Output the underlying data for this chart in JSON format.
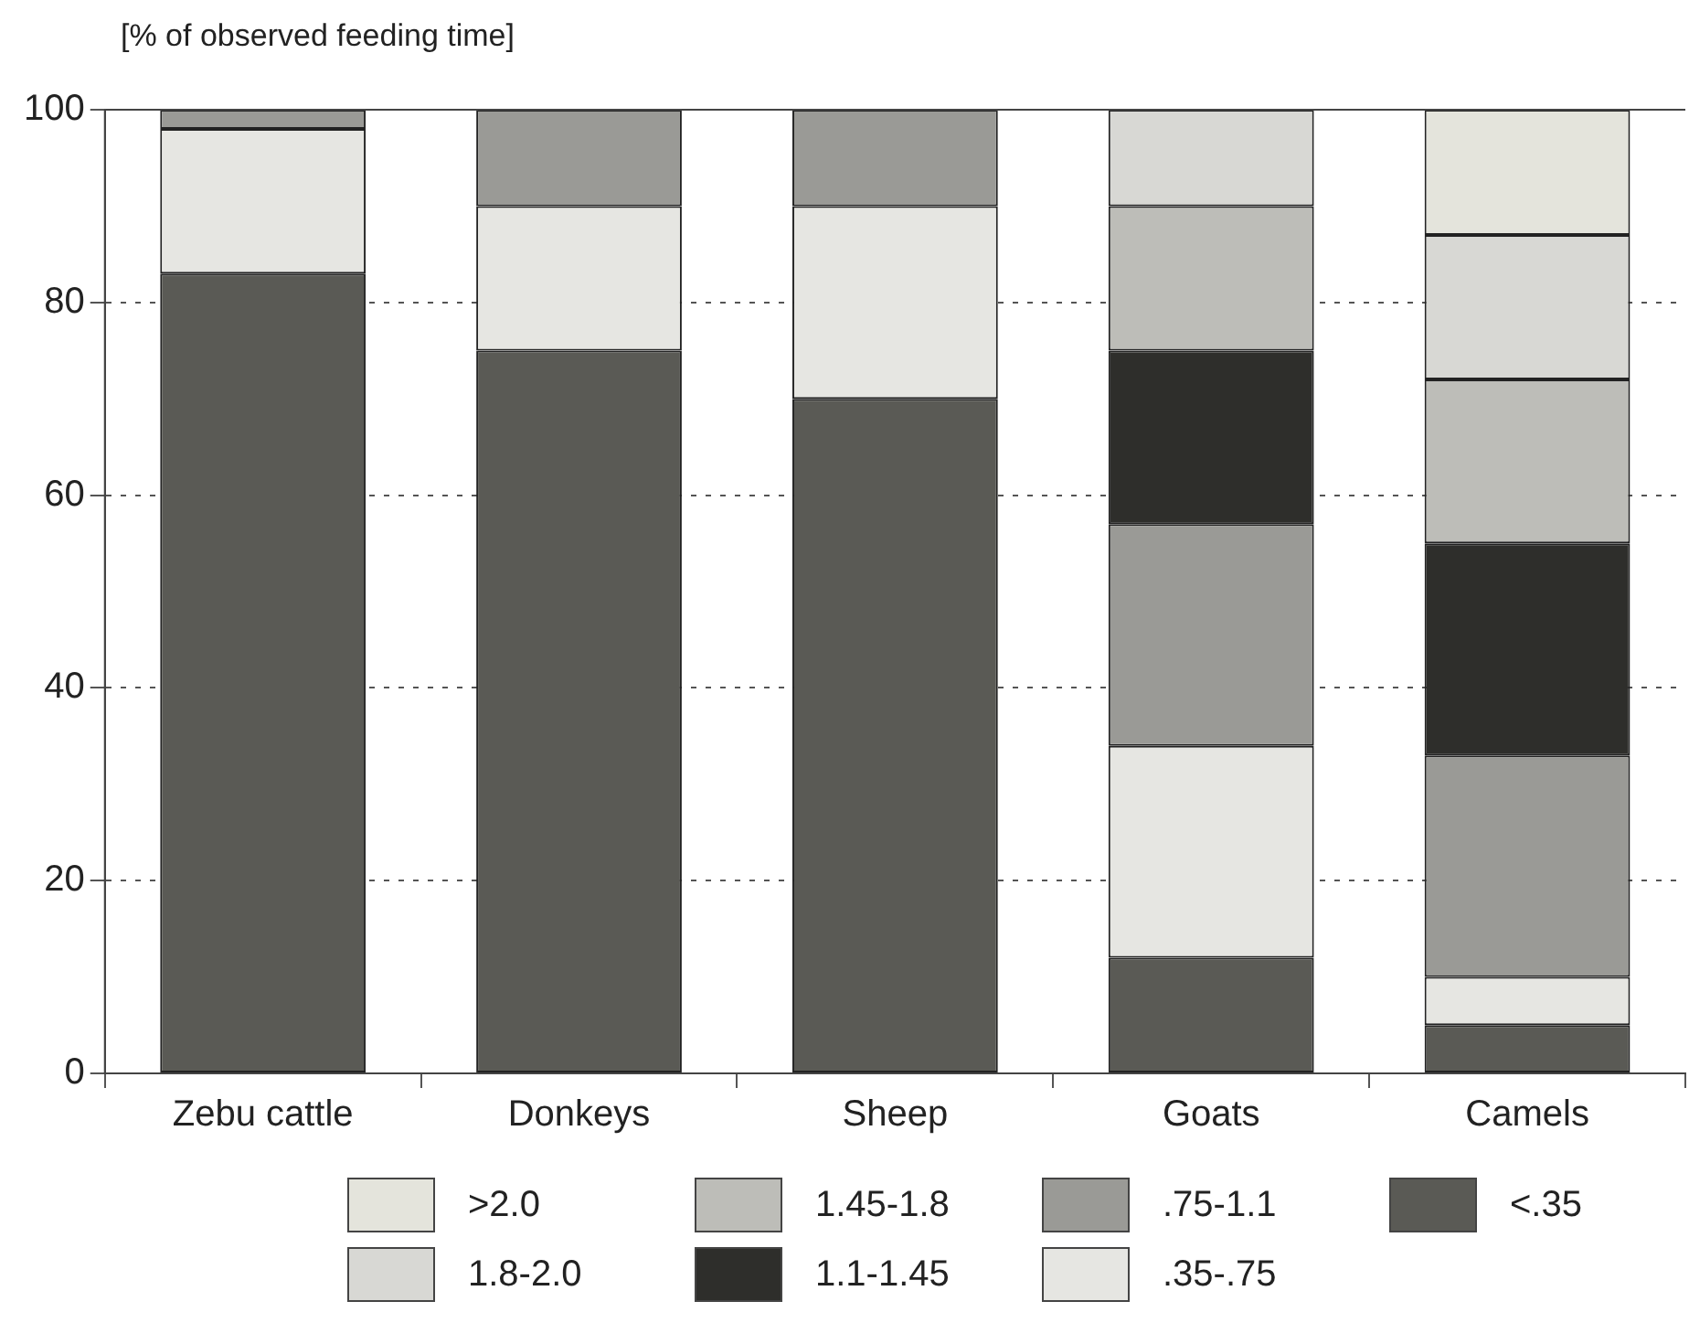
{
  "chart_data": {
    "type": "bar",
    "stacked": true,
    "ylabel": "[% of observed feeding time]",
    "categories": [
      "Zebu cattle",
      "Donkeys",
      "Sheep",
      "Goats",
      "Camels"
    ],
    "series": [
      {
        "name": "<.35",
        "color": "#5a5a55",
        "values": [
          83,
          75,
          70,
          12,
          5
        ]
      },
      {
        "name": ".35-.75",
        "color": "#e6e6e2",
        "values": [
          15,
          15,
          20,
          22,
          5
        ]
      },
      {
        "name": ".75-1.1",
        "color": "#9a9a96",
        "values": [
          2,
          10,
          10,
          23,
          23
        ]
      },
      {
        "name": "1.1-1.45",
        "color": "#2e2e2b",
        "values": [
          null,
          null,
          null,
          18,
          22
        ]
      },
      {
        "name": "1.45-1.8",
        "color": "#bdbdb8",
        "values": [
          null,
          null,
          null,
          15,
          17
        ]
      },
      {
        "name": "1.8-2.0",
        "color": "#d8d8d4",
        "values": [
          null,
          null,
          null,
          10,
          15
        ]
      },
      {
        "name": ">2.0",
        "color": "#e4e4dc",
        "values": [
          null,
          null,
          null,
          null,
          13
        ]
      }
    ],
    "ylim": [
      0,
      100
    ],
    "yticks": [
      0,
      20,
      40,
      60,
      80,
      100
    ],
    "grid": "y",
    "legend": "bottom"
  }
}
